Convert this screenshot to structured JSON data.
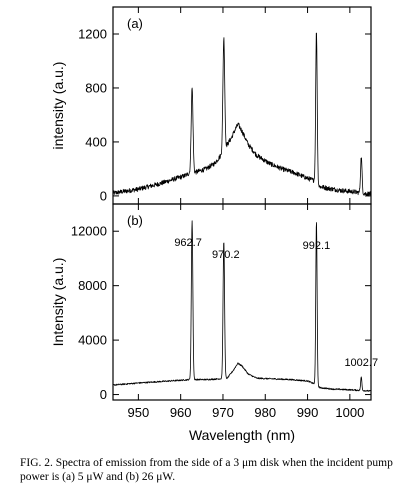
{
  "chart_data": [
    {
      "type": "line",
      "panel_label": "(a)",
      "ylabel": "intensity (a.u.)",
      "xlabel": "",
      "xlim": [
        944,
        1005
      ],
      "ylim": [
        -60,
        1400
      ],
      "yticks": [
        0,
        400,
        800,
        1200
      ],
      "xticks": [
        950,
        960,
        970,
        980,
        990,
        1000
      ],
      "xtick_labels_shown": false,
      "baseline": [
        [
          944,
          20
        ],
        [
          950,
          50
        ],
        [
          955,
          90
        ],
        [
          958,
          120
        ],
        [
          961,
          150
        ],
        [
          962.2,
          170
        ],
        [
          963.5,
          175
        ],
        [
          966,
          200
        ],
        [
          968,
          240
        ],
        [
          969.5,
          300
        ],
        [
          971,
          380
        ],
        [
          972,
          430
        ],
        [
          973,
          500
        ],
        [
          973.6,
          530
        ],
        [
          974.5,
          480
        ],
        [
          976,
          380
        ],
        [
          978,
          300
        ],
        [
          981,
          240
        ],
        [
          984,
          200
        ],
        [
          987,
          170
        ],
        [
          990,
          130
        ],
        [
          991.5,
          115
        ],
        [
          992.8,
          70
        ],
        [
          995,
          55
        ],
        [
          998,
          40
        ],
        [
          1001,
          30
        ],
        [
          1002,
          25
        ],
        [
          1003,
          18
        ],
        [
          1005,
          15
        ]
      ],
      "peaks": [
        {
          "x": 962.7,
          "height": 800,
          "width": 0.3
        },
        {
          "x": 970.2,
          "height": 1170,
          "width": 0.3
        },
        {
          "x": 992.1,
          "height": 1230,
          "width": 0.25
        },
        {
          "x": 1002.7,
          "height": 290,
          "width": 0.25
        }
      ]
    },
    {
      "type": "line",
      "panel_label": "(b)",
      "ylabel": "Intensity (a.u.)",
      "xlabel": "Wavelength (nm)",
      "xlim": [
        944,
        1005
      ],
      "ylim": [
        -400,
        14000
      ],
      "yticks": [
        0,
        4000,
        8000,
        12000
      ],
      "xticks": [
        950,
        960,
        970,
        980,
        990,
        1000
      ],
      "baseline": [
        [
          944,
          700
        ],
        [
          950,
          850
        ],
        [
          955,
          950
        ],
        [
          960,
          1050
        ],
        [
          962.2,
          1100
        ],
        [
          963.5,
          1100
        ],
        [
          966,
          1100
        ],
        [
          969,
          1150
        ],
        [
          971,
          1200
        ],
        [
          972.5,
          1800
        ],
        [
          973.5,
          2300
        ],
        [
          974.5,
          2100
        ],
        [
          976,
          1500
        ],
        [
          978,
          1200
        ],
        [
          982,
          1150
        ],
        [
          986,
          1100
        ],
        [
          990,
          1000
        ],
        [
          991.5,
          800
        ],
        [
          993,
          500
        ],
        [
          996,
          400
        ],
        [
          1000,
          350
        ],
        [
          1003,
          300
        ],
        [
          1005,
          250
        ]
      ],
      "peaks": [
        {
          "x": 962.7,
          "height": 12800,
          "width": 0.25,
          "label": "962.7"
        },
        {
          "x": 970.2,
          "height": 11300,
          "width": 0.25,
          "label": "970.2"
        },
        {
          "x": 992.1,
          "height": 12800,
          "width": 0.22,
          "label": "992.1"
        },
        {
          "x": 1002.7,
          "height": 1300,
          "width": 0.2,
          "label": "1002.7"
        }
      ]
    }
  ],
  "caption": "FIG. 2. Spectra of emission from the side of a 3 μm disk when the incident pump power is (a) 5 μW and (b) 26 μW."
}
